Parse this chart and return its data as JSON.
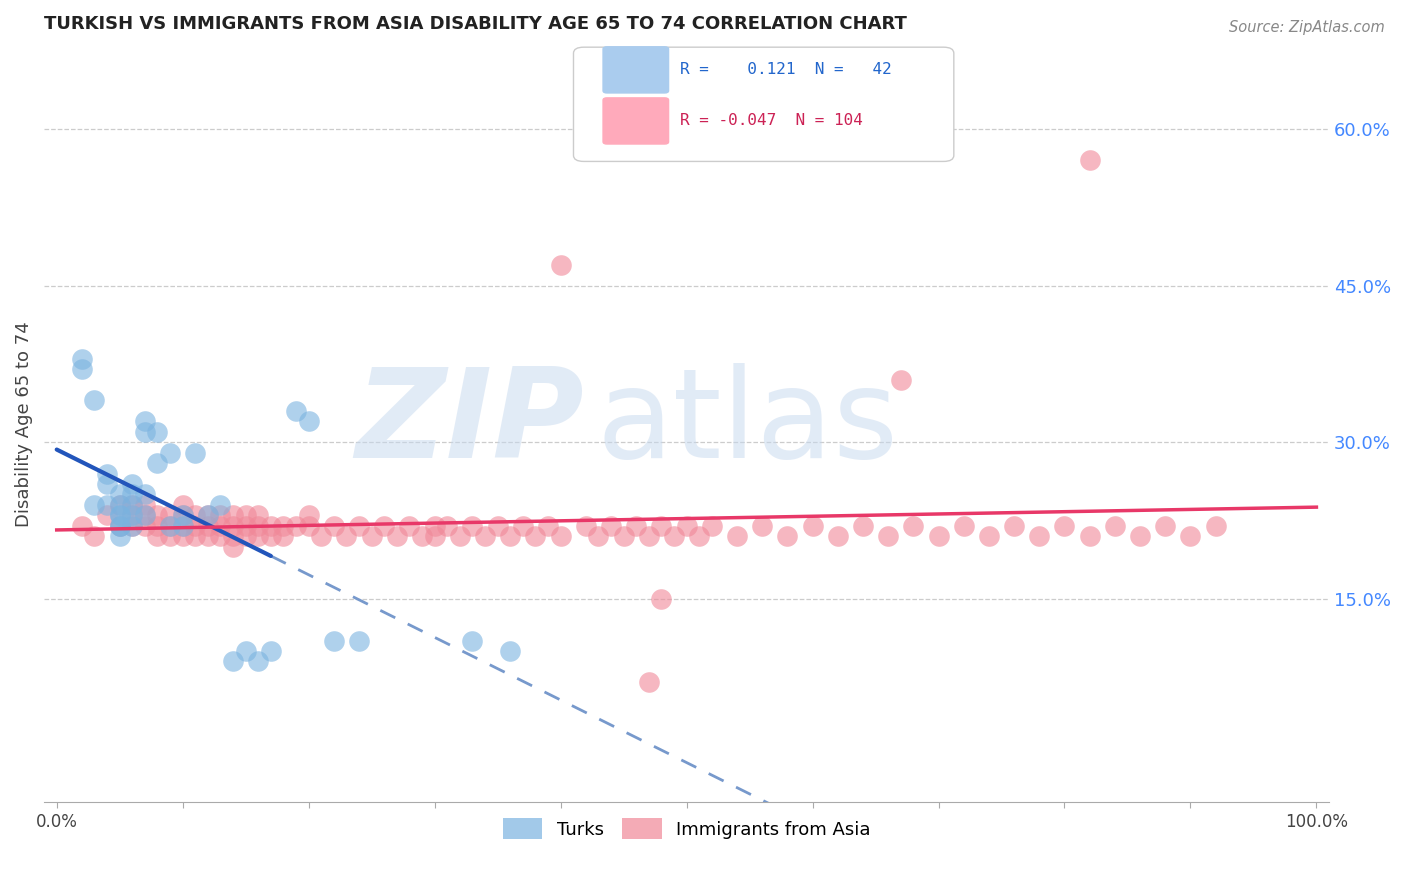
{
  "title": "TURKISH VS IMMIGRANTS FROM ASIA DISABILITY AGE 65 TO 74 CORRELATION CHART",
  "source": "Source: ZipAtlas.com",
  "ylabel": "Disability Age 65 to 74",
  "xlim": [
    -0.01,
    1.01
  ],
  "ylim": [
    -0.045,
    0.68
  ],
  "xticks": [
    0.0,
    0.1,
    0.2,
    0.3,
    0.4,
    0.5,
    0.6,
    0.7,
    0.8,
    0.9,
    1.0
  ],
  "xticklabels": [
    "0.0%",
    "",
    "",
    "",
    "",
    "",
    "",
    "",
    "",
    "",
    "100.0%"
  ],
  "yticks_right": [
    0.15,
    0.3,
    0.45,
    0.6
  ],
  "ytick_right_labels": [
    "15.0%",
    "30.0%",
    "45.0%",
    "60.0%"
  ],
  "R_blue": 0.121,
  "N_blue": 42,
  "R_pink": -0.047,
  "N_pink": 104,
  "blue_scatter_color": "#7bb3e0",
  "pink_scatter_color": "#f08898",
  "blue_line_solid_color": "#2255bb",
  "blue_line_dash_color": "#7799cc",
  "pink_line_color": "#e83868",
  "blue_legend_color": "#aaccee",
  "pink_legend_color": "#ffaabb",
  "watermark_color": "#c5d8ee",
  "grid_color": "#cccccc",
  "right_tick_color": "#4488ff",
  "blue_points_x": [
    0.02,
    0.02,
    0.03,
    0.03,
    0.04,
    0.04,
    0.04,
    0.05,
    0.05,
    0.05,
    0.05,
    0.05,
    0.05,
    0.05,
    0.06,
    0.06,
    0.06,
    0.06,
    0.06,
    0.07,
    0.07,
    0.07,
    0.07,
    0.08,
    0.08,
    0.09,
    0.09,
    0.1,
    0.1,
    0.11,
    0.12,
    0.13,
    0.14,
    0.15,
    0.16,
    0.17,
    0.19,
    0.2,
    0.22,
    0.24,
    0.33,
    0.36
  ],
  "blue_points_y": [
    0.37,
    0.38,
    0.34,
    0.24,
    0.27,
    0.26,
    0.24,
    0.24,
    0.25,
    0.23,
    0.23,
    0.22,
    0.22,
    0.21,
    0.26,
    0.25,
    0.24,
    0.23,
    0.22,
    0.32,
    0.31,
    0.25,
    0.23,
    0.31,
    0.28,
    0.29,
    0.22,
    0.23,
    0.22,
    0.29,
    0.23,
    0.24,
    0.09,
    0.1,
    0.09,
    0.1,
    0.33,
    0.32,
    0.11,
    0.11,
    0.11,
    0.1
  ],
  "pink_points_x": [
    0.02,
    0.03,
    0.04,
    0.05,
    0.05,
    0.06,
    0.06,
    0.06,
    0.07,
    0.07,
    0.07,
    0.08,
    0.08,
    0.08,
    0.09,
    0.09,
    0.09,
    0.1,
    0.1,
    0.1,
    0.1,
    0.11,
    0.11,
    0.11,
    0.12,
    0.12,
    0.12,
    0.13,
    0.13,
    0.13,
    0.14,
    0.14,
    0.14,
    0.14,
    0.15,
    0.15,
    0.15,
    0.16,
    0.16,
    0.16,
    0.17,
    0.17,
    0.18,
    0.18,
    0.19,
    0.2,
    0.2,
    0.21,
    0.22,
    0.23,
    0.24,
    0.25,
    0.26,
    0.27,
    0.28,
    0.29,
    0.3,
    0.3,
    0.31,
    0.32,
    0.33,
    0.34,
    0.35,
    0.36,
    0.37,
    0.38,
    0.39,
    0.4,
    0.42,
    0.43,
    0.44,
    0.45,
    0.46,
    0.47,
    0.48,
    0.48,
    0.49,
    0.5,
    0.51,
    0.52,
    0.54,
    0.56,
    0.58,
    0.6,
    0.62,
    0.64,
    0.66,
    0.68,
    0.7,
    0.72,
    0.74,
    0.76,
    0.78,
    0.8,
    0.82,
    0.84,
    0.86,
    0.88,
    0.9,
    0.92,
    0.4,
    0.82,
    0.47,
    0.67
  ],
  "pink_points_y": [
    0.22,
    0.21,
    0.23,
    0.22,
    0.24,
    0.22,
    0.23,
    0.24,
    0.22,
    0.23,
    0.24,
    0.22,
    0.23,
    0.21,
    0.22,
    0.23,
    0.21,
    0.22,
    0.23,
    0.24,
    0.21,
    0.22,
    0.23,
    0.21,
    0.22,
    0.23,
    0.21,
    0.22,
    0.23,
    0.21,
    0.22,
    0.23,
    0.21,
    0.2,
    0.22,
    0.23,
    0.21,
    0.22,
    0.23,
    0.21,
    0.22,
    0.21,
    0.22,
    0.21,
    0.22,
    0.22,
    0.23,
    0.21,
    0.22,
    0.21,
    0.22,
    0.21,
    0.22,
    0.21,
    0.22,
    0.21,
    0.22,
    0.21,
    0.22,
    0.21,
    0.22,
    0.21,
    0.22,
    0.21,
    0.22,
    0.21,
    0.22,
    0.21,
    0.22,
    0.21,
    0.22,
    0.21,
    0.22,
    0.21,
    0.22,
    0.15,
    0.21,
    0.22,
    0.21,
    0.22,
    0.21,
    0.22,
    0.21,
    0.22,
    0.21,
    0.22,
    0.21,
    0.22,
    0.21,
    0.22,
    0.21,
    0.22,
    0.21,
    0.22,
    0.21,
    0.22,
    0.21,
    0.22,
    0.21,
    0.22,
    0.47,
    0.57,
    0.07,
    0.36
  ]
}
